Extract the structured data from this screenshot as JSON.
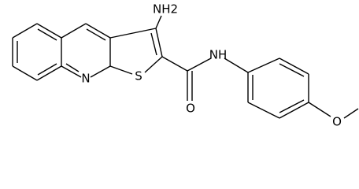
{
  "atoms": [
    {
      "label": "NH2"
    },
    {
      "label": "N"
    },
    {
      "label": "S"
    },
    {
      "label": "O"
    },
    {
      "label": "NH"
    },
    {
      "label": "O"
    }
  ]
}
